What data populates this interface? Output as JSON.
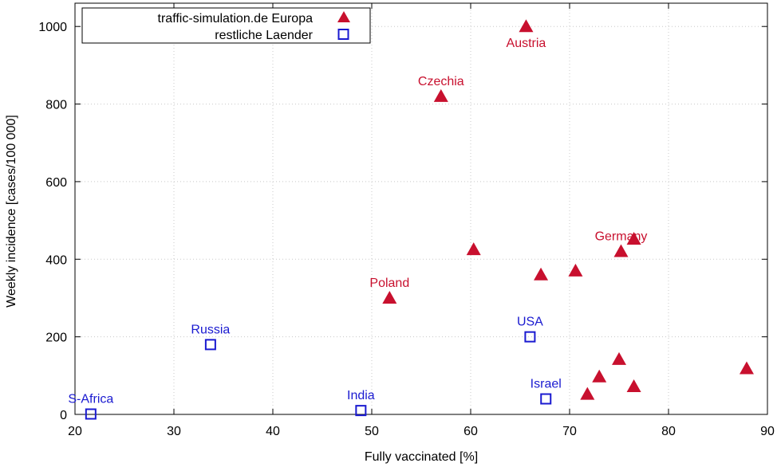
{
  "chart_data": {
    "type": "scatter",
    "title": "",
    "xlabel": "Fully vaccinated [%]",
    "ylabel": "Weekly incidence [cases/100 000]",
    "xlim": [
      20,
      90
    ],
    "ylim": [
      0,
      1060
    ],
    "xticks": [
      20,
      30,
      40,
      50,
      60,
      70,
      80,
      90
    ],
    "yticks": [
      0,
      200,
      400,
      600,
      800,
      1000
    ],
    "grid": true,
    "legend_position": "top-left",
    "series": [
      {
        "name": "traffic-simulation.de Europa",
        "marker": "triangle",
        "color": "#c8102e",
        "points": [
          {
            "x": 65.6,
            "y": 1000,
            "label": "Austria"
          },
          {
            "x": 57.0,
            "y": 820,
            "label": "Czechia"
          },
          {
            "x": 60.3,
            "y": 425,
            "label": ""
          },
          {
            "x": 76.5,
            "y": 452,
            "label": ""
          },
          {
            "x": 75.2,
            "y": 420,
            "label": "Germany"
          },
          {
            "x": 70.6,
            "y": 370,
            "label": ""
          },
          {
            "x": 67.1,
            "y": 360,
            "label": ""
          },
          {
            "x": 51.8,
            "y": 300,
            "label": "Poland"
          },
          {
            "x": 75.0,
            "y": 142,
            "label": ""
          },
          {
            "x": 73.0,
            "y": 97,
            "label": ""
          },
          {
            "x": 76.5,
            "y": 72,
            "label": ""
          },
          {
            "x": 71.8,
            "y": 52,
            "label": ""
          },
          {
            "x": 87.9,
            "y": 118,
            "label": ""
          }
        ]
      },
      {
        "name": "restliche Laender",
        "marker": "square",
        "color": "#1a1ad0",
        "points": [
          {
            "x": 33.7,
            "y": 180,
            "label": "Russia"
          },
          {
            "x": 21.6,
            "y": 1,
            "label": "S-Africa"
          },
          {
            "x": 48.9,
            "y": 10,
            "label": "India"
          },
          {
            "x": 66.0,
            "y": 200,
            "label": "USA"
          },
          {
            "x": 67.6,
            "y": 40,
            "label": "Israel"
          }
        ]
      }
    ]
  }
}
